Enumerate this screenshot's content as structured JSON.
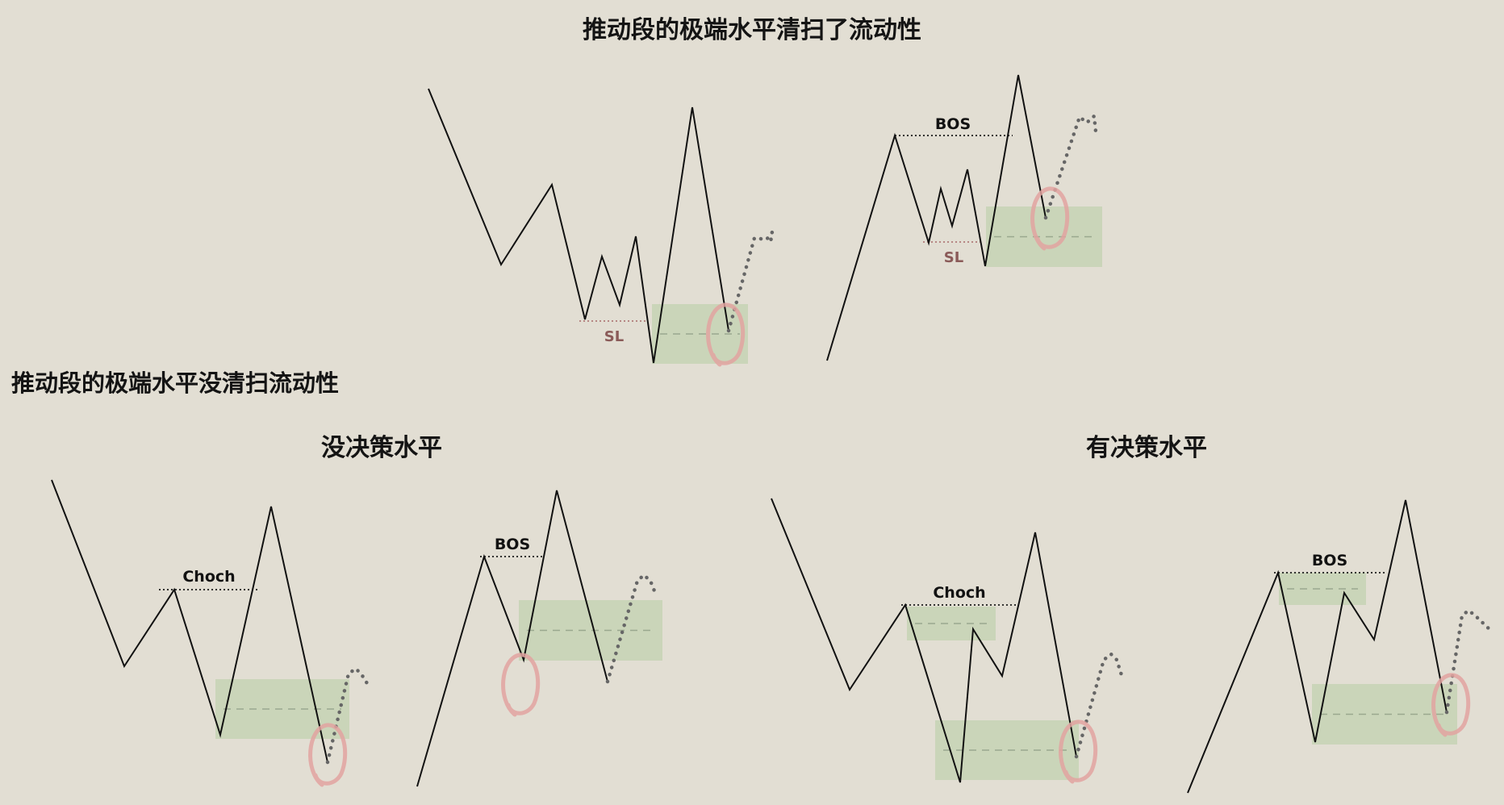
{
  "headings": {
    "top": "推动段的极端水平清扫了流动性",
    "middle": "推动段的极端水平没清扫流动性",
    "sub_left": "没决策水平",
    "sub_right": "有决策水平"
  },
  "labels": {
    "bos": "BOS",
    "choch": "Choch",
    "sl": "SL"
  },
  "colors": {
    "background": "#e2ded3",
    "price_line": "#111111",
    "zone_fill": "#c8d4b6",
    "zone_midline": "#9aa88f",
    "sl_text": "#8a5a58",
    "sl_dotted": "#b07a78",
    "projection": "#666666",
    "circle_marker": "#e2a3a0"
  }
}
